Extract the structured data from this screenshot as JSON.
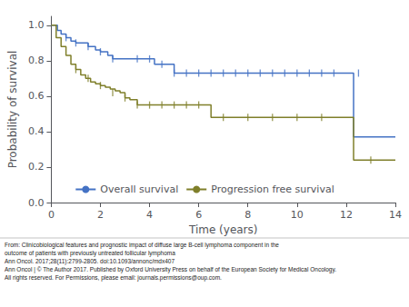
{
  "chart_data": {
    "type": "step",
    "xlabel": "Time (years)",
    "ylabel": "Probability of survival",
    "xlim": [
      0,
      14
    ],
    "ylim": [
      0,
      1.05
    ],
    "xticks": [
      0,
      2,
      4,
      6,
      8,
      10,
      12,
      14
    ],
    "yticks": [
      {
        "value": 0,
        "label": "0.0"
      },
      0.2,
      0.4,
      0.6,
      0.8,
      {
        "value": 1,
        "label": "1.0"
      }
    ],
    "grid": false,
    "legend": "bottom",
    "series": [
      {
        "name": "Overall survival",
        "color": "#4472C4",
        "x": [
          0,
          0.25,
          0.4,
          0.6,
          0.8,
          1.0,
          1.3,
          1.5,
          1.8,
          2.0,
          2.3,
          2.5,
          2.8,
          3.0,
          3.3,
          3.5,
          3.8,
          4.0,
          4.2,
          4.5,
          5.0,
          5.3,
          5.6,
          6.0,
          6.5,
          7.0,
          7.5,
          8.0,
          8.5,
          9.0,
          9.5,
          10.0,
          10.5,
          11.0,
          11.5,
          12.0,
          12.3,
          13.5,
          14.0
        ],
        "values": [
          1.0,
          0.97,
          0.95,
          0.93,
          0.91,
          0.9,
          0.9,
          0.88,
          0.86,
          0.85,
          0.83,
          0.81,
          0.81,
          0.81,
          0.81,
          0.81,
          0.81,
          0.81,
          0.78,
          0.78,
          0.73,
          0.73,
          0.73,
          0.73,
          0.73,
          0.73,
          0.73,
          0.73,
          0.73,
          0.73,
          0.73,
          0.73,
          0.73,
          0.73,
          0.73,
          0.73,
          0.37,
          0.37,
          0.37
        ],
        "censored_x": [
          0.6,
          1.0,
          1.5,
          2.0,
          2.5,
          3.5,
          4.0,
          4.5,
          5.0,
          5.5,
          6.0,
          6.5,
          7.0,
          7.5,
          8.0,
          8.5,
          9.0,
          9.5,
          10.0,
          10.5,
          11.0,
          11.5,
          12.5
        ],
        "censored_values": [
          0.93,
          0.9,
          0.88,
          0.85,
          0.81,
          0.81,
          0.81,
          0.78,
          0.73,
          0.73,
          0.73,
          0.73,
          0.73,
          0.73,
          0.73,
          0.73,
          0.73,
          0.73,
          0.73,
          0.73,
          0.73,
          0.73,
          0.73
        ]
      },
      {
        "name": "Progression free survival",
        "color": "#7f7f2a",
        "x": [
          0,
          0.2,
          0.4,
          0.6,
          0.8,
          1.0,
          1.2,
          1.4,
          1.6,
          1.8,
          2.0,
          2.2,
          2.4,
          2.6,
          2.8,
          3.0,
          3.2,
          3.5,
          3.8,
          4.0,
          4.3,
          4.5,
          4.8,
          5.0,
          5.3,
          5.5,
          5.8,
          6.0,
          6.5,
          7.0,
          7.5,
          8.0,
          8.5,
          9.0,
          9.5,
          10.0,
          10.5,
          11.0,
          12.0,
          12.3,
          13.5,
          14.0
        ],
        "values": [
          1.0,
          0.93,
          0.88,
          0.83,
          0.78,
          0.75,
          0.72,
          0.7,
          0.68,
          0.67,
          0.66,
          0.65,
          0.64,
          0.63,
          0.62,
          0.59,
          0.58,
          0.55,
          0.55,
          0.55,
          0.55,
          0.55,
          0.55,
          0.55,
          0.55,
          0.55,
          0.55,
          0.55,
          0.48,
          0.48,
          0.48,
          0.48,
          0.48,
          0.48,
          0.48,
          0.48,
          0.48,
          0.48,
          0.48,
          0.24,
          0.24,
          0.24
        ],
        "censored_x": [
          1.0,
          1.5,
          2.0,
          2.5,
          3.0,
          3.5,
          4.0,
          4.5,
          5.0,
          5.5,
          6.0,
          7.0,
          8.0,
          9.0,
          10.0,
          11.0,
          13.0
        ],
        "censored_values": [
          0.75,
          0.7,
          0.66,
          0.62,
          0.59,
          0.55,
          0.55,
          0.55,
          0.55,
          0.55,
          0.55,
          0.48,
          0.48,
          0.48,
          0.48,
          0.48,
          0.24
        ]
      }
    ],
    "annotations": [
      "From: Clinicobiological features and prognostic impact of diffuse large B-cell lymphoma component in the",
      "outcome of patients with previously untreated follicular lymphoma",
      "Ann Oncol. 2017;28(11):2799-2805. doi:10.1093/annonc/mdx407",
      "Ann Oncol | © The Author 2017. Published by Oxford University Press on behalf of the European Society for Medical Oncology.",
      "All rights reserved. For Permissions, please email: journals.permissions@oup.com."
    ]
  }
}
